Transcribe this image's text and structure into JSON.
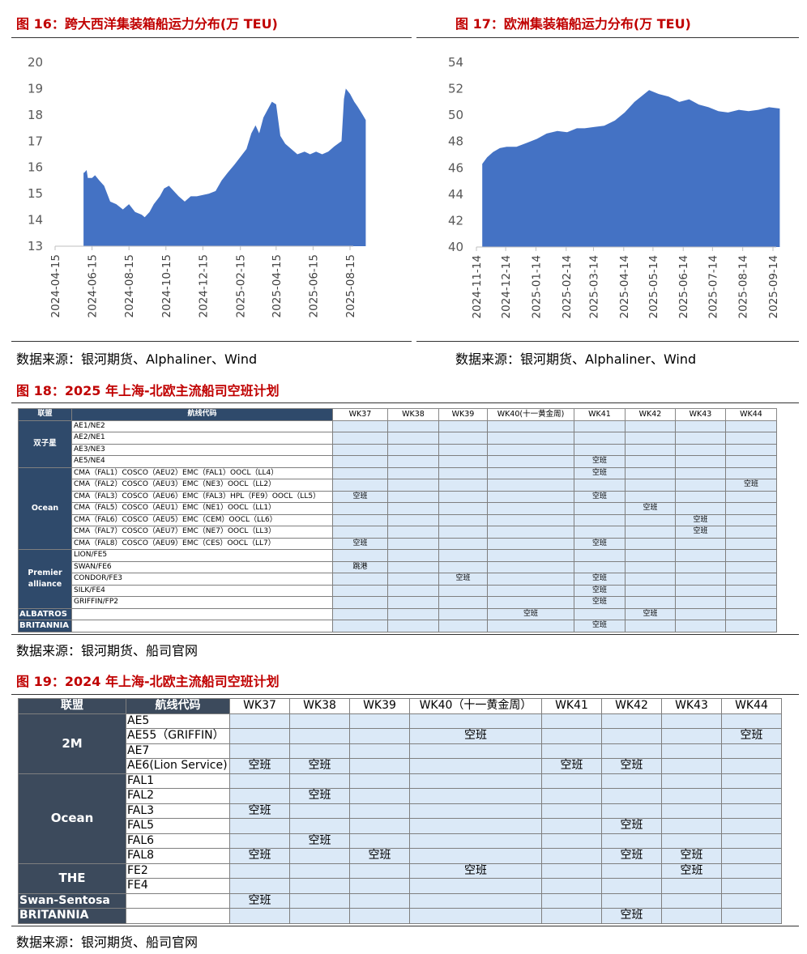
{
  "fig16": {
    "title": "图 16：跨大西洋集装箱船运力分布(万 TEU)",
    "source": "数据来源：银河期货、Alphaliner、Wind",
    "chart_data": {
      "type": "area",
      "y_ticks": [
        "20",
        "19",
        "18",
        "17",
        "16",
        "15",
        "14",
        "13"
      ],
      "ylim": [
        13,
        20
      ],
      "x_ticks": [
        "2024-04-15",
        "2024-06-15",
        "2024-08-15",
        "2024-10-15",
        "2024-12-15",
        "2025-02-15",
        "2025-04-15",
        "2025-06-15",
        "2025-08-15"
      ],
      "x_start": "2024-04-15",
      "x_end": "2025-08-15",
      "color": "#4472c4",
      "points": [
        [
          "2024-06-01",
          15.8
        ],
        [
          "2024-06-02",
          15.8
        ],
        [
          "2024-06-06",
          15.9
        ],
        [
          "2024-06-08",
          15.6
        ],
        [
          "2024-06-15",
          15.6
        ],
        [
          "2024-06-20",
          15.7
        ],
        [
          "2024-06-27",
          15.5
        ],
        [
          "2024-07-05",
          15.3
        ],
        [
          "2024-07-15",
          14.7
        ],
        [
          "2024-07-25",
          14.6
        ],
        [
          "2024-08-05",
          14.4
        ],
        [
          "2024-08-15",
          14.6
        ],
        [
          "2024-08-25",
          14.3
        ],
        [
          "2024-09-05",
          14.2
        ],
        [
          "2024-09-10",
          14.1
        ],
        [
          "2024-09-18",
          14.3
        ],
        [
          "2024-09-25",
          14.6
        ],
        [
          "2024-10-05",
          14.9
        ],
        [
          "2024-10-12",
          15.2
        ],
        [
          "2024-10-20",
          15.3
        ],
        [
          "2024-10-28",
          15.1
        ],
        [
          "2024-11-05",
          14.9
        ],
        [
          "2024-11-15",
          14.7
        ],
        [
          "2024-11-25",
          14.9
        ],
        [
          "2024-12-05",
          14.9
        ],
        [
          "2024-12-15",
          14.95
        ],
        [
          "2024-12-25",
          15.0
        ],
        [
          "2025-01-05",
          15.1
        ],
        [
          "2025-01-15",
          15.5
        ],
        [
          "2025-01-25",
          15.8
        ],
        [
          "2025-02-05",
          16.1
        ],
        [
          "2025-02-15",
          16.4
        ],
        [
          "2025-02-25",
          16.7
        ],
        [
          "2025-03-05",
          17.3
        ],
        [
          "2025-03-12",
          17.6
        ],
        [
          "2025-03-18",
          17.3
        ],
        [
          "2025-03-25",
          17.9
        ],
        [
          "2025-04-01",
          18.2
        ],
        [
          "2025-04-08",
          18.5
        ],
        [
          "2025-04-15",
          18.4
        ],
        [
          "2025-04-22",
          17.2
        ],
        [
          "2025-04-30",
          16.9
        ],
        [
          "2025-05-10",
          16.7
        ],
        [
          "2025-05-20",
          16.5
        ],
        [
          "2025-06-01",
          16.6
        ],
        [
          "2025-06-10",
          16.5
        ],
        [
          "2025-06-20",
          16.6
        ],
        [
          "2025-06-30",
          16.5
        ],
        [
          "2025-07-10",
          16.6
        ],
        [
          "2025-07-20",
          16.8
        ],
        [
          "2025-08-01",
          17.0
        ],
        [
          "2025-08-05",
          18.6
        ],
        [
          "2025-08-08",
          19.0
        ],
        [
          "2025-08-15",
          18.8
        ],
        [
          "2025-08-22",
          18.5
        ],
        [
          "2025-08-28",
          18.3
        ],
        [
          "2025-09-05",
          18.0
        ],
        [
          "2025-09-10",
          17.8
        ]
      ]
    }
  },
  "fig17": {
    "title": "图 17：欧洲集装箱船运力分布(万 TEU)",
    "source": "数据来源：银河期货、Alphaliner、Wind",
    "chart_data": {
      "type": "area",
      "y_ticks": [
        "54",
        "52",
        "50",
        "48",
        "46",
        "44",
        "42",
        "40"
      ],
      "ylim": [
        40,
        54
      ],
      "x_ticks": [
        "2024-11-14",
        "2024-12-14",
        "2025-01-14",
        "2025-02-14",
        "2025-03-14",
        "2025-04-14",
        "2025-05-14",
        "2025-06-14",
        "2025-07-14",
        "2025-08-14",
        "2025-09-14"
      ],
      "x_start": "2024-11-14",
      "x_end": "2025-09-14",
      "color": "#4472c4",
      "points": [
        [
          "2024-11-20",
          46.3
        ],
        [
          "2024-11-25",
          46.8
        ],
        [
          "2024-12-01",
          47.2
        ],
        [
          "2024-12-08",
          47.5
        ],
        [
          "2024-12-15",
          47.6
        ],
        [
          "2024-12-25",
          47.6
        ],
        [
          "2025-01-05",
          47.9
        ],
        [
          "2025-01-15",
          48.2
        ],
        [
          "2025-01-25",
          48.6
        ],
        [
          "2025-02-05",
          48.8
        ],
        [
          "2025-02-15",
          48.7
        ],
        [
          "2025-02-25",
          49.0
        ],
        [
          "2025-03-05",
          49.0
        ],
        [
          "2025-03-15",
          49.1
        ],
        [
          "2025-03-25",
          49.2
        ],
        [
          "2025-04-05",
          49.6
        ],
        [
          "2025-04-15",
          50.2
        ],
        [
          "2025-04-25",
          51.0
        ],
        [
          "2025-05-05",
          51.6
        ],
        [
          "2025-05-10",
          51.9
        ],
        [
          "2025-05-20",
          51.6
        ],
        [
          "2025-05-30",
          51.4
        ],
        [
          "2025-06-10",
          51.0
        ],
        [
          "2025-06-20",
          51.2
        ],
        [
          "2025-06-30",
          50.8
        ],
        [
          "2025-07-10",
          50.6
        ],
        [
          "2025-07-20",
          50.3
        ],
        [
          "2025-07-30",
          50.2
        ],
        [
          "2025-08-10",
          50.4
        ],
        [
          "2025-08-20",
          50.3
        ],
        [
          "2025-08-30",
          50.4
        ],
        [
          "2025-09-10",
          50.6
        ],
        [
          "2025-09-21",
          50.5
        ]
      ]
    }
  },
  "fig18": {
    "title": "图 18：2025 年上海-北欧主流船司空班计划",
    "source": "数据来源：银河期货、船司官网",
    "headers": [
      "联盟",
      "航线代码",
      "WK37",
      "WK38",
      "WK39",
      "WK40(十一黄金周)",
      "WK41",
      "WK42",
      "WK43",
      "WK44"
    ],
    "rows": [
      {
        "alliance": "双子星",
        "span": 4,
        "route": "AE1/NE2",
        "cells": [
          "",
          "",
          "",
          "",
          "",
          "",
          "",
          ""
        ]
      },
      {
        "route": "AE2/NE1",
        "cells": [
          "",
          "",
          "",
          "",
          "",
          "",
          "",
          ""
        ]
      },
      {
        "route": "AE3/NE3",
        "cells": [
          "",
          "",
          "",
          "",
          "",
          "",
          "",
          ""
        ]
      },
      {
        "route": "AE5/NE4",
        "cells": [
          "",
          "",
          "",
          "",
          "空班",
          "",
          "",
          ""
        ]
      },
      {
        "alliance": "Ocean",
        "span": 7,
        "route": "CMA（FAL1）COSCO（AEU2）EMC（FAL1）OOCL（LL4）",
        "cells": [
          "",
          "",
          "",
          "",
          "空班",
          "",
          "",
          ""
        ]
      },
      {
        "route": "CMA（FAL2）COSCO（AEU3）EMC（NE3）OOCL（LL2）",
        "cells": [
          "",
          "",
          "",
          "",
          "",
          "",
          "",
          "空班"
        ]
      },
      {
        "route": "CMA（FAL3）COSCO（AEU6）EMC（FAL3）HPL（FE9）OOCL（LL5）",
        "cells": [
          "空班",
          "",
          "",
          "",
          "空班",
          "",
          "",
          ""
        ]
      },
      {
        "route": "CMA（FAL5）COSCO（AEU1）EMC（NE1）OOCL（LL1）",
        "cells": [
          "",
          "",
          "",
          "",
          "",
          "空班",
          "",
          ""
        ]
      },
      {
        "route": "CMA（FAL6）COSCO（AEU5）EMC（CEM）OOCL（LL6）",
        "cells": [
          "",
          "",
          "",
          "",
          "",
          "",
          "空班",
          ""
        ]
      },
      {
        "route": "CMA（FAL7）COSCO（AEU7）EMC（NE7）OOCL（LL3）",
        "cells": [
          "",
          "",
          "",
          "",
          "",
          "",
          "空班",
          ""
        ]
      },
      {
        "route": "CMA（FAL8）COSCO（AEU9）EMC（CES）OOCL（LL7）",
        "cells": [
          "空班",
          "",
          "",
          "",
          "空班",
          "",
          "",
          ""
        ]
      },
      {
        "alliance": "Premier alliance",
        "span": 5,
        "route": "LION/FE5",
        "cells": [
          "",
          "",
          "",
          "",
          "",
          "",
          "",
          ""
        ]
      },
      {
        "route": "SWAN/FE6",
        "cells": [
          "跳港",
          "",
          "",
          "",
          "",
          "",
          "",
          ""
        ]
      },
      {
        "route": "CONDOR/FE3",
        "cells": [
          "",
          "",
          "空班",
          "",
          "空班",
          "",
          "",
          ""
        ]
      },
      {
        "route": "SILK/FE4",
        "cells": [
          "",
          "",
          "",
          "",
          "空班",
          "",
          "",
          ""
        ]
      },
      {
        "route": "GRIFFIN/FP2",
        "cells": [
          "",
          "",
          "",
          "",
          "空班",
          "",
          "",
          ""
        ]
      },
      {
        "alliance": "ALBATROS",
        "span": 1,
        "left": true,
        "route": "",
        "cells": [
          "",
          "",
          "",
          "空班",
          "",
          "空班",
          "",
          ""
        ]
      },
      {
        "alliance": "BRITANNIA",
        "span": 1,
        "left": true,
        "route": "",
        "cells": [
          "",
          "",
          "",
          "",
          "空班",
          "",
          "",
          ""
        ]
      }
    ]
  },
  "fig19": {
    "title": "图 19：2024 年上海-北欧主流船司空班计划",
    "source": "数据来源：银河期货、船司官网",
    "headers": [
      "联盟",
      "航线代码",
      "WK37",
      "WK38",
      "WK39",
      "WK40（十一黄金周）",
      "WK41",
      "WK42",
      "WK43",
      "WK44"
    ],
    "rows": [
      {
        "alliance": "2M",
        "span": 4,
        "route": "AE5",
        "cells": [
          "",
          "",
          "",
          "",
          "",
          "",
          "",
          ""
        ]
      },
      {
        "route": "AE55（GRIFFIN）",
        "cells": [
          "",
          "",
          "",
          "空班",
          "",
          "",
          "",
          "空班"
        ]
      },
      {
        "route": "AE7",
        "cells": [
          "",
          "",
          "",
          "",
          "",
          "",
          "",
          ""
        ]
      },
      {
        "route": "AE6(Lion Service)",
        "cells": [
          "空班",
          "空班",
          "",
          "",
          "空班",
          "空班",
          "",
          ""
        ]
      },
      {
        "alliance": "Ocean",
        "span": 6,
        "route": "FAL1",
        "cells": [
          "",
          "",
          "",
          "",
          "",
          "",
          "",
          ""
        ]
      },
      {
        "route": "FAL2",
        "cells": [
          "",
          "空班",
          "",
          "",
          "",
          "",
          "",
          ""
        ]
      },
      {
        "route": "FAL3",
        "cells": [
          "空班",
          "",
          "",
          "",
          "",
          "",
          "",
          ""
        ]
      },
      {
        "route": "FAL5",
        "cells": [
          "",
          "",
          "",
          "",
          "",
          "空班",
          "",
          ""
        ]
      },
      {
        "route": "FAL6",
        "cells": [
          "",
          "空班",
          "",
          "",
          "",
          "",
          "",
          ""
        ]
      },
      {
        "route": "FAL8",
        "cells": [
          "空班",
          "",
          "空班",
          "",
          "",
          "空班",
          "空班",
          ""
        ]
      },
      {
        "alliance": "THE",
        "span": 2,
        "route": "FE2",
        "cells": [
          "",
          "",
          "",
          "空班",
          "",
          "",
          "空班",
          ""
        ]
      },
      {
        "route": "FE4",
        "cells": [
          "",
          "",
          "",
          "",
          "",
          "",
          "",
          ""
        ]
      },
      {
        "alliance": "Swan-Sentosa",
        "span": 1,
        "left": true,
        "route": "",
        "cells": [
          "空班",
          "",
          "",
          "",
          "",
          "",
          "",
          ""
        ]
      },
      {
        "alliance": "BRITANNIA",
        "span": 1,
        "left": true,
        "route": "",
        "cells": [
          "",
          "",
          "",
          "",
          "",
          "空班",
          "",
          ""
        ]
      }
    ]
  }
}
